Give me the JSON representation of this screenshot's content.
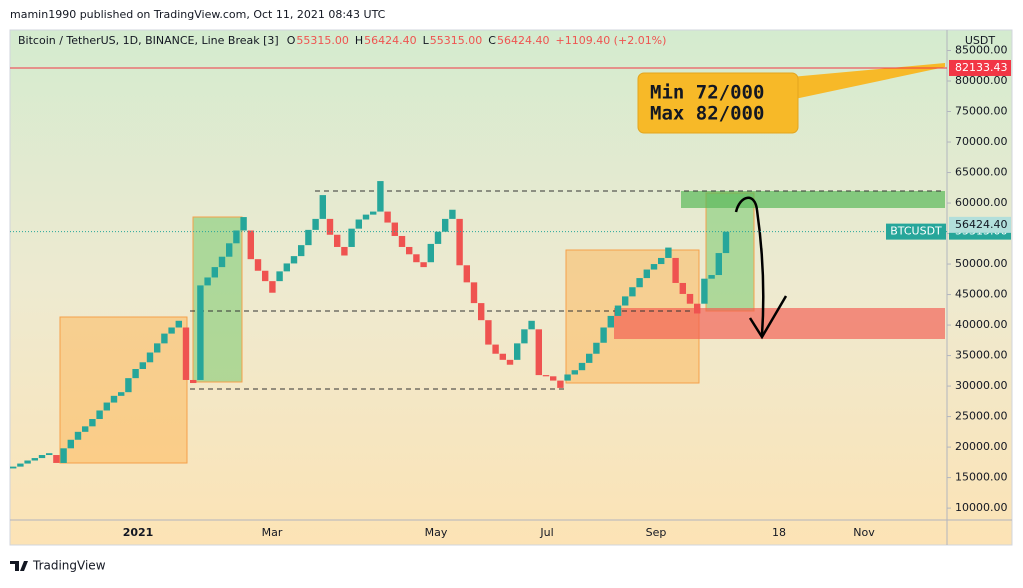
{
  "header": {
    "publish": "mamin1990 published on TradingView.com, Oct 11, 2021 08:43 UTC"
  },
  "footer": {
    "brand": "TradingView"
  },
  "chart_data": {
    "type": "line_break",
    "title": "Bitcoin / TetherUS, 1D, BINANCE, Line Break [3]",
    "ohlc": [
      {
        "label": "O",
        "value": "55315.00"
      },
      {
        "label": "H",
        "value": "56424.40"
      },
      {
        "label": "L",
        "value": "55315.00"
      },
      {
        "label": "C",
        "value": "56424.40"
      }
    ],
    "change": "+1109.40 (+2.01%)",
    "y_axis_label": "USDT",
    "up_color": "#26a69a",
    "down_color": "#ef5350",
    "open": [
      16500,
      16800,
      17300,
      17800,
      18200,
      18700,
      18700,
      17400,
      19800,
      21200,
      22500,
      23400,
      24600,
      26000,
      27300,
      28400,
      29000,
      31300,
      32800,
      33900,
      35500,
      37000,
      38600,
      39600,
      39600,
      31000,
      31000,
      46500,
      47800,
      49500,
      51200,
      53400,
      55500,
      55500,
      50800,
      48900,
      47200,
      47200,
      48800,
      50100,
      51300,
      53100,
      55600,
      57400,
      57400,
      54800,
      52800,
      52800,
      55800,
      57300,
      58100,
      58600,
      58600,
      56800,
      54600,
      52800,
      51600,
      50300,
      50300,
      53300,
      55300,
      57400,
      57400,
      49800,
      47000,
      43600,
      40800,
      36800,
      35300,
      34300,
      34300,
      37000,
      39300,
      39300,
      31800,
      31600,
      30900,
      30900,
      31900,
      32600,
      33800,
      35300,
      37100,
      39600,
      41500,
      43200,
      44700,
      46200,
      47700,
      49100,
      50000,
      51000,
      51000,
      46900,
      45100,
      43500,
      43500,
      47600,
      48200,
      51800
    ],
    "close": [
      16800,
      17300,
      17800,
      18200,
      18700,
      19000,
      17400,
      19800,
      21200,
      22500,
      23400,
      24600,
      26000,
      27300,
      28400,
      29000,
      31300,
      32800,
      33900,
      35500,
      37000,
      38600,
      39600,
      40700,
      31000,
      30500,
      46500,
      47800,
      49500,
      51200,
      53400,
      55500,
      57700,
      50800,
      48900,
      47200,
      45300,
      48800,
      50100,
      51300,
      53100,
      55600,
      57400,
      61300,
      54800,
      52800,
      51400,
      55800,
      57300,
      58100,
      58600,
      63600,
      56800,
      54600,
      52800,
      51600,
      50300,
      49500,
      53300,
      55300,
      57400,
      58900,
      49800,
      47000,
      43600,
      40800,
      36800,
      35300,
      34300,
      33500,
      37000,
      39300,
      40700,
      31800,
      31600,
      30900,
      29700,
      31900,
      32600,
      33800,
      35300,
      37100,
      39600,
      41500,
      43200,
      44700,
      46200,
      47700,
      49100,
      50000,
      51000,
      52700,
      46900,
      45100,
      43500,
      41900,
      47600,
      48200,
      51800,
      55300
    ],
    "ylim": [
      8050,
      88360
    ],
    "yticks": [
      {
        "value": 10000,
        "label": "10000.00"
      },
      {
        "value": 15000,
        "label": "15000.00"
      },
      {
        "value": 20000,
        "label": "20000.00"
      },
      {
        "value": 25000,
        "label": "25000.00"
      },
      {
        "value": 30000,
        "label": "30000.00"
      },
      {
        "value": 35000,
        "label": "35000.00"
      },
      {
        "value": 40000,
        "label": "40000.00"
      },
      {
        "value": 45000,
        "label": "45000.00"
      },
      {
        "value": 50000,
        "label": "50000.00"
      },
      {
        "value": 55000,
        "label": "55000.00"
      },
      {
        "value": 60000,
        "label": "60000.00"
      },
      {
        "value": 65000,
        "label": "65000.00"
      },
      {
        "value": 70000,
        "label": "70000.00"
      },
      {
        "value": 75000,
        "label": "75000.00"
      },
      {
        "value": 80000,
        "label": "80000.00"
      },
      {
        "value": 85000,
        "label": "85000.00"
      }
    ],
    "xtick_labels": [
      "2021",
      "Mar",
      "May",
      "Jul",
      "Sep",
      "18",
      "Nov"
    ],
    "alert_line": {
      "value": 82133.43,
      "label": "82133.43",
      "color": "#f23645"
    },
    "last_price": {
      "value": 56424.4,
      "label": "56424.40"
    },
    "symbol_price": {
      "name": "BTCUSDT",
      "value": 55315.0,
      "label": "55315.00"
    },
    "annotation": [
      "Min 72/000",
      "Max 82/000"
    ]
  }
}
